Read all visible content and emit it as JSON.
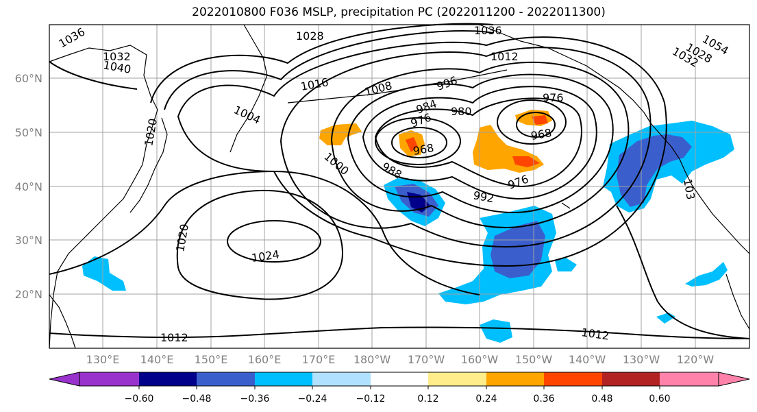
{
  "title": "2022010800 F036 MSLP, precipitation PC (2022011200 - 2022011300)",
  "map": {
    "lat_ticks": [
      "60°N",
      "50°N",
      "40°N",
      "30°N",
      "20°N"
    ],
    "lon_ticks": [
      "130°E",
      "140°E",
      "150°E",
      "160°E",
      "170°E",
      "180°W",
      "170°W",
      "160°W",
      "150°W",
      "140°W",
      "130°W",
      "120°W"
    ],
    "contour_labels": [
      {
        "text": "1036",
        "id": "c1036-w"
      },
      {
        "text": "1028",
        "id": "c1028-n"
      },
      {
        "text": "1036",
        "id": "c1036-ne"
      },
      {
        "text": "1054",
        "id": "c1054-ne"
      },
      {
        "text": "1028",
        "id": "c1028-ne"
      },
      {
        "text": "1032",
        "id": "c1032-ne"
      },
      {
        "text": "1032",
        "id": "c1032-w"
      },
      {
        "text": "1040",
        "id": "c1040-w"
      },
      {
        "text": "1012",
        "id": "c1012-n"
      },
      {
        "text": "1016",
        "id": "c1016-n"
      },
      {
        "text": "1008",
        "id": "c1008-n"
      },
      {
        "text": "996",
        "id": "c996"
      },
      {
        "text": "1004",
        "id": "c1004"
      },
      {
        "text": "984",
        "id": "c984"
      },
      {
        "text": "980",
        "id": "c980"
      },
      {
        "text": "976",
        "id": "c976-a"
      },
      {
        "text": "976",
        "id": "c976-b"
      },
      {
        "text": "968",
        "id": "c968-a"
      },
      {
        "text": "968",
        "id": "c968-b"
      },
      {
        "text": "1000",
        "id": "c1000"
      },
      {
        "text": "988",
        "id": "c988"
      },
      {
        "text": "992",
        "id": "c992"
      },
      {
        "text": "976",
        "id": "c976-c"
      },
      {
        "text": "1020",
        "id": "c1020"
      },
      {
        "text": "1024",
        "id": "c1024"
      },
      {
        "text": "1012",
        "id": "c1012-s"
      },
      {
        "text": "1012",
        "id": "c1012-se"
      },
      {
        "text": "103",
        "id": "c103-e"
      },
      {
        "text": "1020",
        "id": "c1020-w"
      }
    ]
  },
  "colorbar": {
    "ticks": [
      "−0.60",
      "−0.48",
      "−0.36",
      "−0.24",
      "−0.12",
      "0.12",
      "0.24",
      "0.36",
      "0.48",
      "0.60"
    ],
    "colors": [
      "#9932cc",
      "#00008b",
      "#3a5fcd",
      "#00bfff",
      "#b0e2ff",
      "#ffffff",
      "#ffec8b",
      "#ffa500",
      "#ff4500",
      "#b22222",
      "#ff82ab"
    ]
  }
}
